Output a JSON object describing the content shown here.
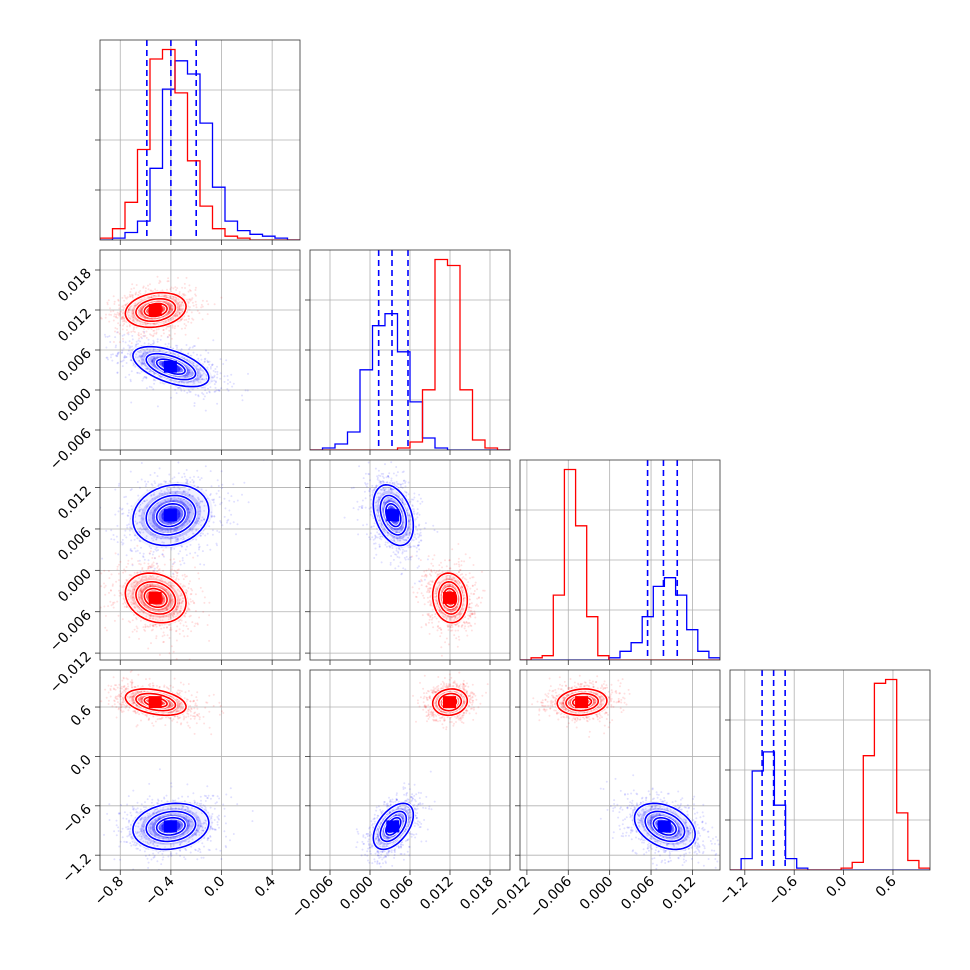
{
  "chart_data": {
    "type": "corner",
    "parameters": 4,
    "grid": true,
    "series": [
      {
        "color": "#0000ff",
        "means": [
          -0.4,
          0.0035,
          0.008,
          -0.85
        ],
        "sds": [
          0.15,
          0.0015,
          0.0022,
          0.14
        ],
        "quantiles": [
          [
            -0.59,
            -0.4,
            -0.2
          ],
          [
            0.0013,
            0.0033,
            0.0057
          ],
          [
            0.0055,
            0.0078,
            0.0098
          ],
          [
            -0.99,
            -0.85,
            -0.71
          ]
        ],
        "correlations": {
          "0-1": -0.55,
          "0-2": 0.15,
          "0-3": 0.15,
          "1-2": -0.35,
          "1-3": 0.5,
          "2-3": -0.35
        },
        "histograms": [
          [
            0,
            1,
            4,
            10,
            38,
            80,
            95,
            88,
            62,
            28,
            10,
            5,
            3,
            2,
            1,
            0
          ],
          [
            0,
            1,
            3,
            9,
            40,
            62,
            68,
            49,
            24,
            6,
            1,
            0,
            0,
            0,
            0,
            0
          ],
          [
            0,
            0,
            0,
            0,
            0,
            0,
            0,
            0,
            1,
            4,
            8,
            20,
            34,
            38,
            30,
            14,
            4,
            1
          ],
          [
            0,
            6,
            52,
            62,
            34,
            6,
            1,
            0,
            0,
            0,
            0,
            0,
            0,
            0,
            0,
            0,
            0,
            0
          ]
        ]
      },
      {
        "color": "#ff0000",
        "means": [
          -0.52,
          0.012,
          -0.004,
          0.66
        ],
        "sds": [
          0.12,
          0.0013,
          0.0018,
          0.08
        ],
        "correlations": {
          "0-1": 0.2,
          "0-2": -0.2,
          "0-3": -0.35,
          "1-2": -0.1,
          "1-3": 0.1,
          "2-3": 0.1
        },
        "histograms": [
          [
            1,
            6,
            20,
            48,
            96,
            101,
            78,
            42,
            18,
            6,
            2,
            1,
            0,
            0,
            0,
            0
          ],
          [
            0,
            0,
            0,
            0,
            0,
            0,
            0,
            1,
            4,
            30,
            95,
            92,
            30,
            5,
            1,
            0
          ],
          [
            0,
            1,
            2,
            30,
            88,
            62,
            20,
            2,
            0,
            0,
            0,
            0,
            0,
            0,
            0,
            0,
            0,
            0
          ],
          [
            0,
            0,
            0,
            0,
            0,
            0,
            0,
            0,
            0,
            0,
            1,
            4,
            60,
            98,
            100,
            30,
            5,
            1
          ]
        ]
      }
    ],
    "ranges": [
      [
        -0.96,
        0.62
      ],
      [
        -0.009,
        0.021
      ],
      [
        -0.013,
        0.016
      ],
      [
        -1.38,
        1.05
      ]
    ],
    "ticks": [
      {
        "values": [
          -0.8,
          -0.4,
          0.0,
          0.4
        ],
        "labels": [
          "−0.8",
          "−0.4",
          "0.0",
          "0.4"
        ]
      },
      {
        "values": [
          -0.006,
          0.0,
          0.006,
          0.012,
          0.018
        ],
        "labels": [
          "−0.006",
          "0.000",
          "0.006",
          "0.012",
          "0.018"
        ]
      },
      {
        "values": [
          -0.012,
          -0.006,
          0.0,
          0.006,
          0.012
        ],
        "labels": [
          "−0.012",
          "−0.006",
          "0.000",
          "0.006",
          "0.012"
        ]
      },
      {
        "values": [
          -1.2,
          -0.6,
          0.0,
          0.6
        ],
        "labels": [
          "−1.2",
          "−0.6",
          "0.0",
          "0.6"
        ]
      }
    ]
  }
}
